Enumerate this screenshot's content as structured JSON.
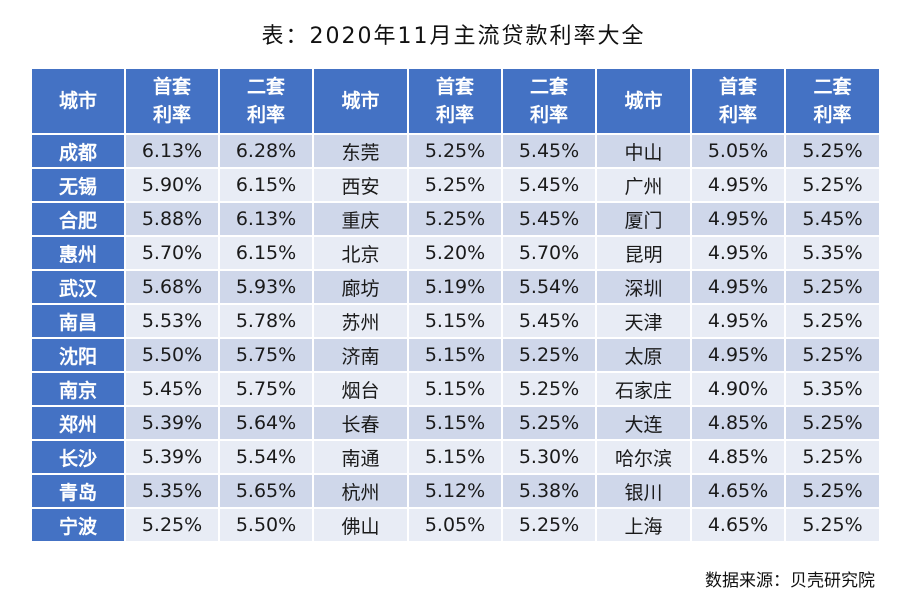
{
  "title": "表：2020年11月主流贷款利率大全",
  "source": "数据来源：贝壳研究院",
  "headers": {
    "city": "城市",
    "first_line1": "首套",
    "first_line2": "利率",
    "second_line1": "二套",
    "second_line2": "利率"
  },
  "colors": {
    "header_bg": "#4472c4",
    "row_dark": "#cfd7ea",
    "row_light": "#e8ecf5"
  },
  "chart_data": {
    "type": "table",
    "title": "表：2020年11月主流贷款利率大全",
    "columns": [
      "城市",
      "首套利率",
      "二套利率",
      "城市",
      "首套利率",
      "二套利率",
      "城市",
      "首套利率",
      "二套利率"
    ],
    "rows": [
      [
        "成都",
        "6.13%",
        "6.28%",
        "东莞",
        "5.25%",
        "5.45%",
        "中山",
        "5.05%",
        "5.25%"
      ],
      [
        "无锡",
        "5.90%",
        "6.15%",
        "西安",
        "5.25%",
        "5.45%",
        "广州",
        "4.95%",
        "5.25%"
      ],
      [
        "合肥",
        "5.88%",
        "6.13%",
        "重庆",
        "5.25%",
        "5.45%",
        "厦门",
        "4.95%",
        "5.45%"
      ],
      [
        "惠州",
        "5.70%",
        "6.15%",
        "北京",
        "5.20%",
        "5.70%",
        "昆明",
        "4.95%",
        "5.35%"
      ],
      [
        "武汉",
        "5.68%",
        "5.93%",
        "廊坊",
        "5.19%",
        "5.54%",
        "深圳",
        "4.95%",
        "5.25%"
      ],
      [
        "南昌",
        "5.53%",
        "5.78%",
        "苏州",
        "5.15%",
        "5.45%",
        "天津",
        "4.95%",
        "5.25%"
      ],
      [
        "沈阳",
        "5.50%",
        "5.75%",
        "济南",
        "5.15%",
        "5.25%",
        "太原",
        "4.95%",
        "5.25%"
      ],
      [
        "南京",
        "5.45%",
        "5.75%",
        "烟台",
        "5.15%",
        "5.25%",
        "石家庄",
        "4.90%",
        "5.35%"
      ],
      [
        "郑州",
        "5.39%",
        "5.64%",
        "长春",
        "5.15%",
        "5.25%",
        "大连",
        "4.85%",
        "5.25%"
      ],
      [
        "长沙",
        "5.39%",
        "5.54%",
        "南通",
        "5.15%",
        "5.30%",
        "哈尔滨",
        "4.85%",
        "5.25%"
      ],
      [
        "青岛",
        "5.35%",
        "5.65%",
        "杭州",
        "5.12%",
        "5.38%",
        "银川",
        "4.65%",
        "5.25%"
      ],
      [
        "宁波",
        "5.25%",
        "5.50%",
        "佛山",
        "5.05%",
        "5.25%",
        "上海",
        "4.65%",
        "5.25%"
      ]
    ]
  }
}
